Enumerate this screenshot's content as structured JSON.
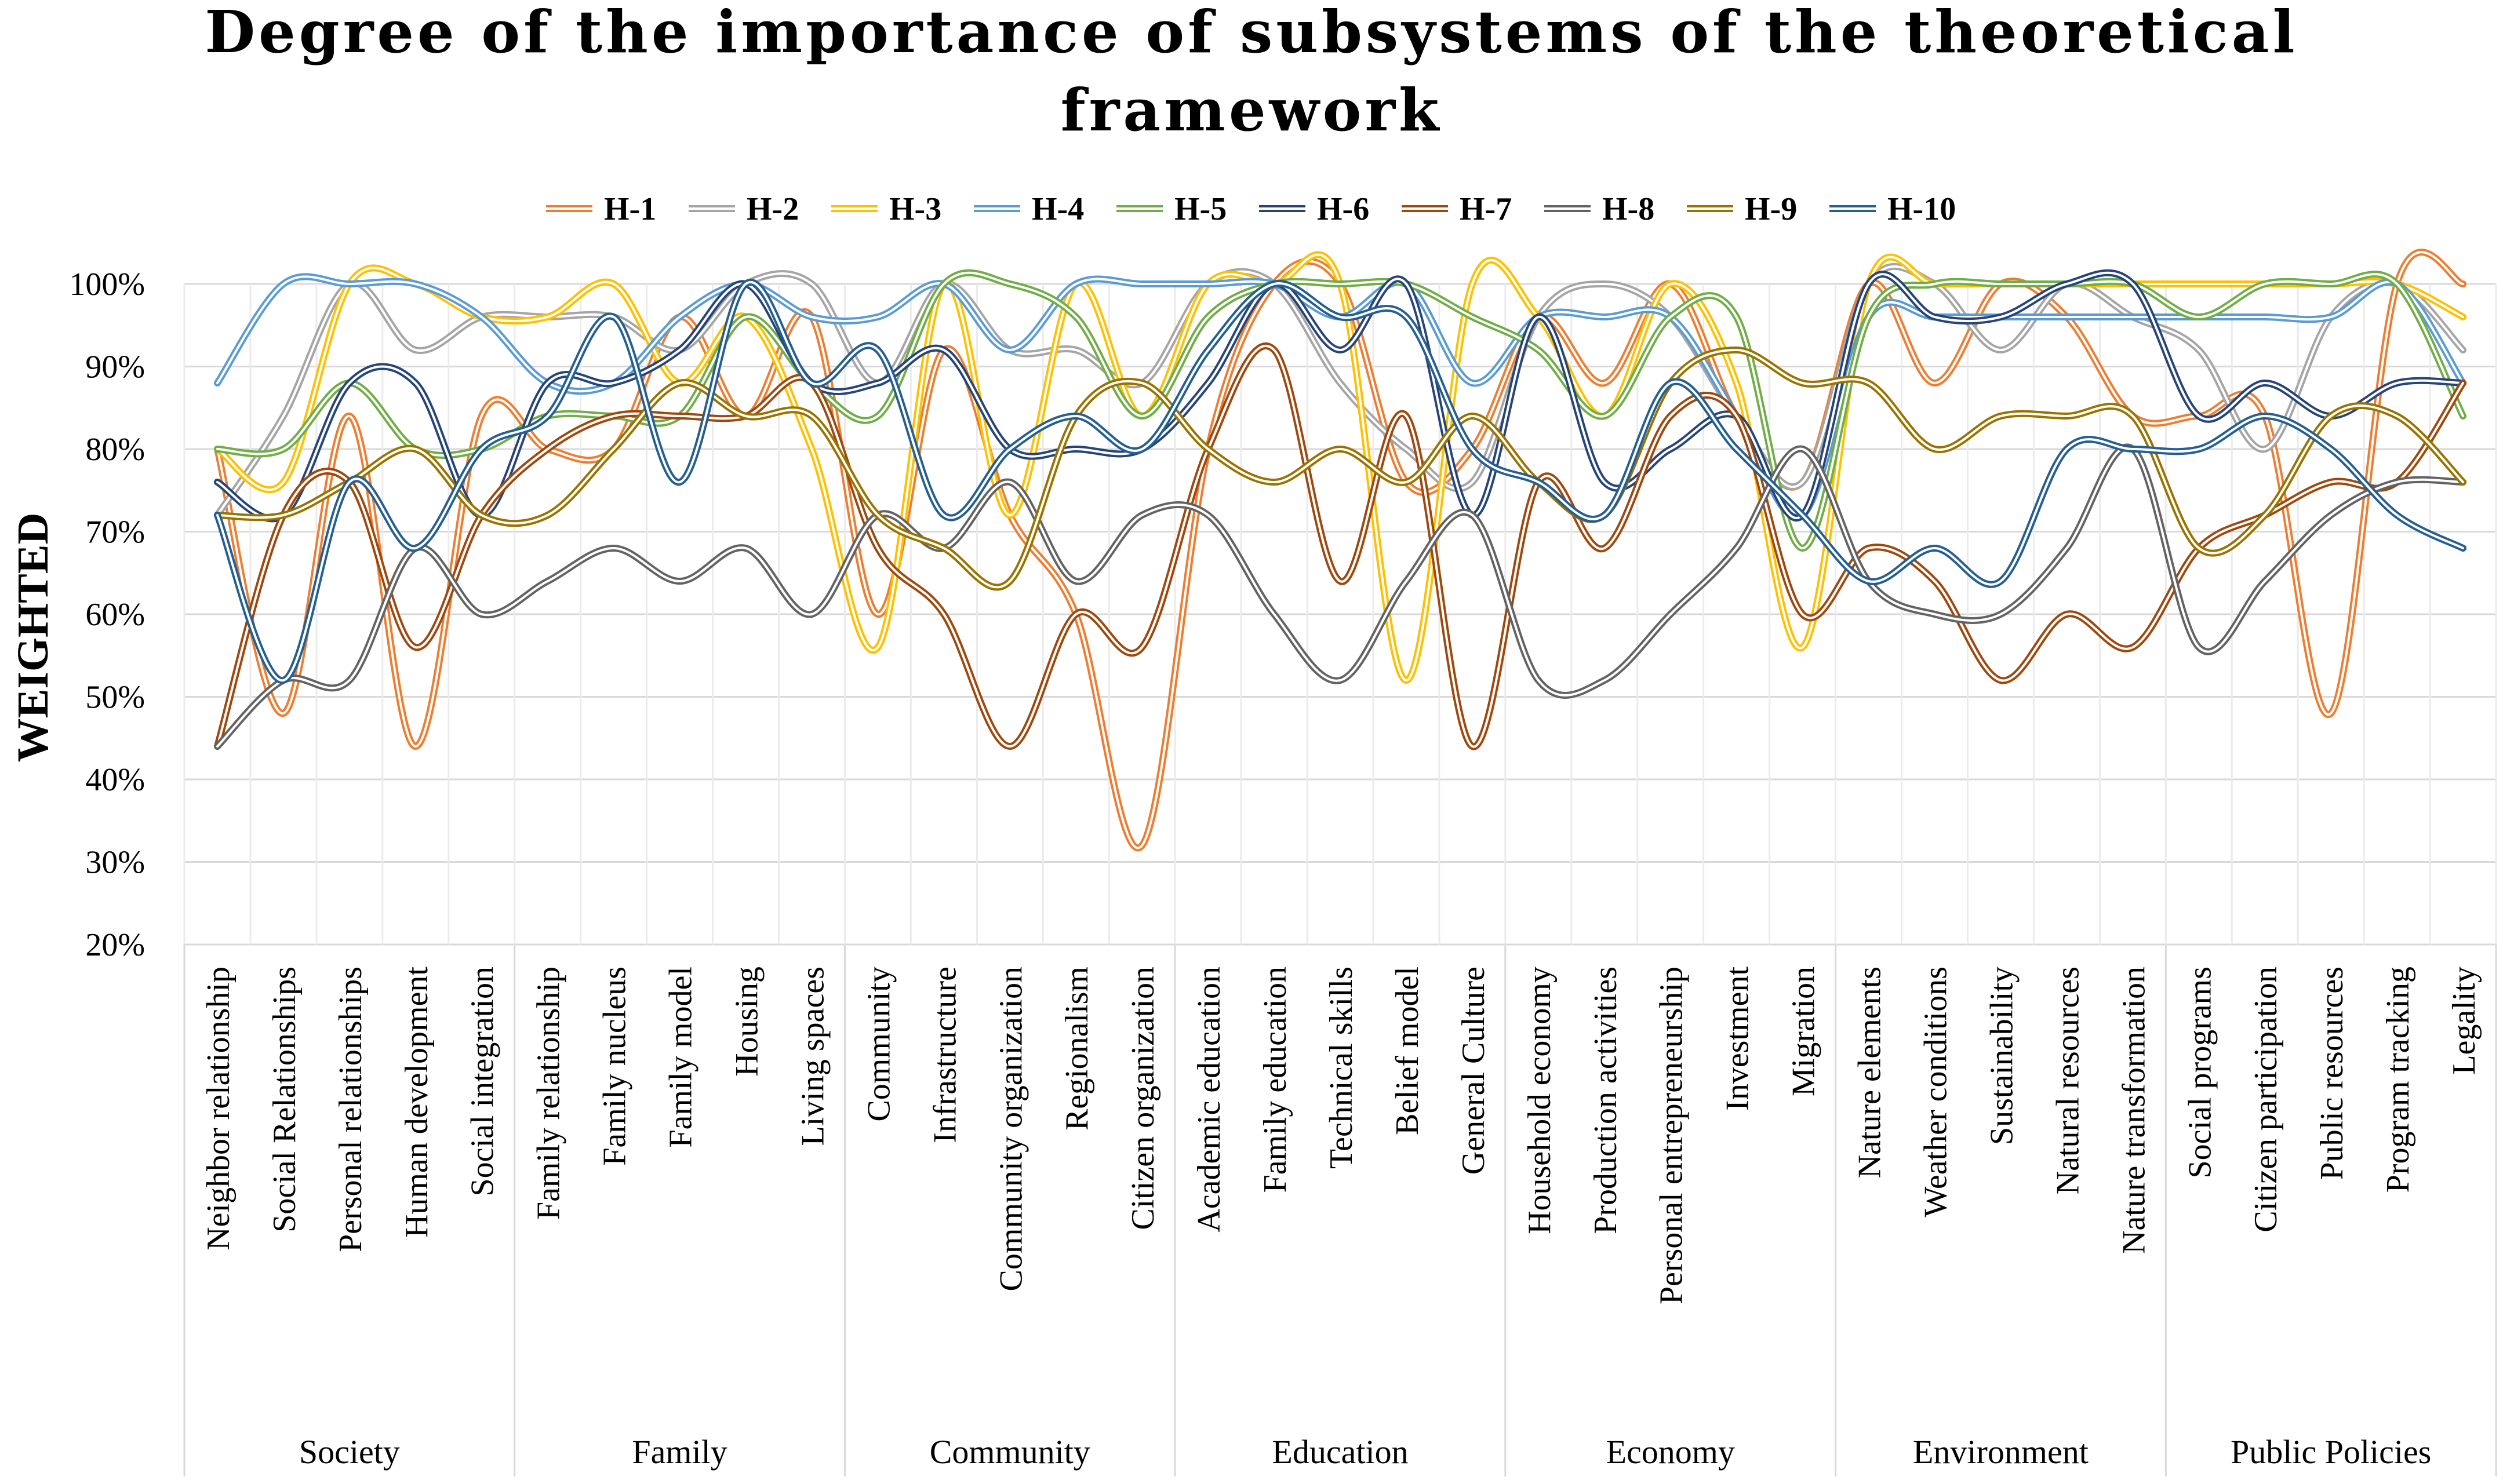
{
  "chart_data": {
    "type": "line",
    "title_lines": [
      "Degree of the importance of subsystems of the theoretical",
      "framework"
    ],
    "ylabel": "WEIGHTED",
    "xlabel": "",
    "ylim": [
      0.2,
      1.0
    ],
    "yticks": [
      "20%",
      "30%",
      "40%",
      "50%",
      "60%",
      "70%",
      "80%",
      "90%",
      "100%"
    ],
    "grid": true,
    "legend_position": "top",
    "categories": [
      "Neighbor relationship",
      "Social Relationships",
      "Personal relationships",
      "Human development",
      "Social integration",
      "Family relationship",
      "Family nucleus",
      "Family model",
      "Housing",
      "Living spaces",
      "Community",
      "Infrastructure",
      "Community organization",
      "Regionalism",
      "Citizen organization",
      "Academic education",
      "Family education",
      "Technical skills",
      "Belief model",
      "General Culture",
      "Household economy",
      "Production activities",
      "Personal entrepreneurship",
      "Investment",
      "Migration",
      "Nature elements",
      "Weather conditions",
      "Sustainability",
      "Natural resources",
      "Nature transformation",
      "Social programs",
      "Citizen participation",
      "Public resources",
      "Program tracking",
      "Legality"
    ],
    "groups": [
      {
        "name": "Society",
        "count": 5
      },
      {
        "name": "Family",
        "count": 5
      },
      {
        "name": "Community",
        "count": 5
      },
      {
        "name": "Education",
        "count": 5
      },
      {
        "name": "Economy",
        "count": 5
      },
      {
        "name": "Environment",
        "count": 5
      },
      {
        "name": "Public Policies",
        "count": 5
      }
    ],
    "series": [
      {
        "name": "H-1",
        "color": "#ED7D31",
        "values": [
          0.8,
          0.48,
          0.84,
          0.44,
          0.84,
          0.8,
          0.8,
          0.96,
          0.84,
          0.96,
          0.6,
          0.92,
          0.72,
          0.6,
          0.32,
          0.8,
          1.0,
          1.0,
          0.76,
          0.8,
          0.96,
          0.88,
          1.0,
          0.84,
          0.76,
          1.0,
          0.88,
          1.0,
          0.96,
          0.84,
          0.84,
          0.84,
          0.48,
          1.0,
          1.0
        ]
      },
      {
        "name": "H-2",
        "color": "#A5A5A5",
        "values": [
          0.72,
          0.84,
          1.0,
          0.92,
          0.96,
          0.96,
          0.96,
          0.92,
          1.0,
          1.0,
          0.88,
          1.0,
          0.92,
          0.92,
          0.88,
          1.0,
          1.0,
          0.88,
          0.8,
          0.76,
          0.96,
          1.0,
          0.96,
          0.84,
          0.76,
          1.0,
          1.0,
          0.92,
          1.0,
          0.96,
          0.92,
          0.8,
          0.96,
          1.0,
          0.92
        ]
      },
      {
        "name": "H-3",
        "color": "#FFC000",
        "values": [
          0.8,
          0.76,
          1.0,
          1.0,
          0.96,
          0.96,
          1.0,
          0.88,
          0.96,
          0.8,
          0.56,
          1.0,
          0.72,
          1.0,
          0.84,
          1.0,
          1.0,
          1.0,
          0.52,
          1.0,
          0.96,
          0.84,
          1.0,
          0.88,
          0.56,
          1.0,
          1.0,
          1.0,
          1.0,
          1.0,
          1.0,
          1.0,
          1.0,
          1.0,
          0.96
        ]
      },
      {
        "name": "H-4",
        "color": "#5B9BD5",
        "values": [
          0.88,
          1.0,
          1.0,
          1.0,
          0.96,
          0.88,
          0.88,
          0.96,
          1.0,
          0.96,
          0.96,
          1.0,
          0.92,
          1.0,
          1.0,
          1.0,
          1.0,
          0.96,
          1.0,
          0.88,
          0.96,
          0.96,
          0.96,
          0.84,
          0.72,
          0.96,
          0.96,
          0.96,
          0.96,
          0.96,
          0.96,
          0.96,
          0.96,
          1.0,
          0.88
        ]
      },
      {
        "name": "H-5",
        "color": "#70AD47",
        "values": [
          0.8,
          0.8,
          0.88,
          0.8,
          0.8,
          0.84,
          0.84,
          0.84,
          0.96,
          0.88,
          0.84,
          1.0,
          1.0,
          0.96,
          0.84,
          0.96,
          1.0,
          1.0,
          1.0,
          0.96,
          0.92,
          0.84,
          0.96,
          0.96,
          0.68,
          0.96,
          1.0,
          1.0,
          1.0,
          1.0,
          0.96,
          1.0,
          1.0,
          1.0,
          0.84
        ]
      },
      {
        "name": "H-6",
        "color": "#264478",
        "values": [
          0.76,
          0.72,
          0.88,
          0.88,
          0.72,
          0.88,
          0.88,
          0.92,
          1.0,
          0.88,
          0.88,
          0.92,
          0.8,
          0.8,
          0.8,
          0.88,
          1.0,
          0.92,
          1.0,
          0.72,
          0.96,
          0.76,
          0.8,
          0.84,
          0.72,
          1.0,
          0.96,
          0.96,
          1.0,
          1.0,
          0.84,
          0.88,
          0.84,
          0.88,
          0.88
        ]
      },
      {
        "name": "H-7",
        "color": "#9E480E",
        "values": [
          0.44,
          0.72,
          0.76,
          0.56,
          0.72,
          0.8,
          0.84,
          0.84,
          0.84,
          0.88,
          0.68,
          0.6,
          0.44,
          0.6,
          0.56,
          0.8,
          0.92,
          0.64,
          0.84,
          0.44,
          0.76,
          0.68,
          0.84,
          0.84,
          0.6,
          0.68,
          0.64,
          0.52,
          0.6,
          0.56,
          0.68,
          0.72,
          0.76,
          0.76,
          0.88
        ]
      },
      {
        "name": "H-8",
        "color": "#636363",
        "values": [
          0.44,
          0.52,
          0.52,
          0.68,
          0.6,
          0.64,
          0.68,
          0.64,
          0.68,
          0.6,
          0.72,
          0.68,
          0.76,
          0.64,
          0.72,
          0.72,
          0.6,
          0.52,
          0.64,
          0.72,
          0.52,
          0.52,
          0.6,
          0.68,
          0.8,
          0.64,
          0.6,
          0.6,
          0.68,
          0.8,
          0.56,
          0.64,
          0.72,
          0.76,
          0.76
        ]
      },
      {
        "name": "H-9",
        "color": "#997300",
        "values": [
          0.72,
          0.72,
          0.76,
          0.8,
          0.72,
          0.72,
          0.8,
          0.88,
          0.84,
          0.84,
          0.72,
          0.68,
          0.64,
          0.84,
          0.88,
          0.8,
          0.76,
          0.8,
          0.76,
          0.84,
          0.76,
          0.72,
          0.88,
          0.92,
          0.88,
          0.88,
          0.8,
          0.84,
          0.84,
          0.84,
          0.68,
          0.72,
          0.84,
          0.84,
          0.76
        ]
      },
      {
        "name": "H-10",
        "color": "#255E91",
        "values": [
          0.72,
          0.52,
          0.76,
          0.68,
          0.8,
          0.84,
          0.96,
          0.76,
          1.0,
          0.88,
          0.92,
          0.72,
          0.8,
          0.84,
          0.8,
          0.92,
          1.0,
          0.96,
          0.96,
          0.8,
          0.76,
          0.72,
          0.88,
          0.8,
          0.72,
          0.64,
          0.68,
          0.64,
          0.8,
          0.8,
          0.8,
          0.84,
          0.8,
          0.72,
          0.68
        ]
      }
    ]
  }
}
